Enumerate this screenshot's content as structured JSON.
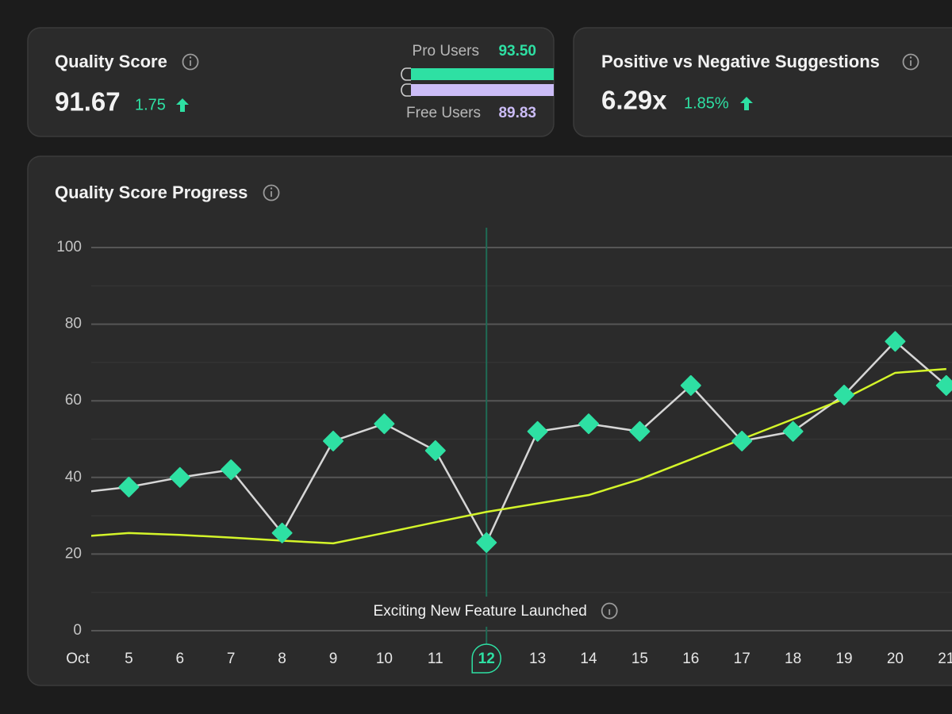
{
  "cards": [
    {
      "title": "Quality Score",
      "value": "91.67",
      "change": "1.75",
      "breakdown": [
        {
          "label": "Pro Users",
          "value": 93.5,
          "value_label": "93.50",
          "color": "#2ee0a3"
        },
        {
          "label": "Free Users",
          "value": 89.83,
          "value_label": "89.83",
          "color": "#cbbcf6"
        }
      ]
    },
    {
      "title": "Positive vs Negative Suggestions",
      "value": "6.29x",
      "change": "1.85%"
    }
  ],
  "chart_data": {
    "type": "line",
    "title": "Quality Score Progress",
    "categories": [
      "Oct",
      "5",
      "6",
      "7",
      "8",
      "9",
      "10",
      "11",
      "12",
      "13",
      "14",
      "15",
      "16",
      "17",
      "18",
      "19",
      "20",
      "21"
    ],
    "series": [
      {
        "color": "#d6d6d6",
        "marker": "diamond",
        "marker_color": "#2ee0a3",
        "values": [
          36,
          37.5,
          40,
          42,
          25.5,
          49.5,
          54,
          47,
          23,
          52,
          54,
          52,
          64,
          49.5,
          52,
          61.5,
          75.5,
          64
        ]
      },
      {
        "color": "#d4f52a",
        "values": [
          24.5,
          25.5,
          25,
          24.3,
          23.5,
          22.8,
          25.5,
          28.3,
          31,
          33.2,
          35.4,
          39.5,
          44.7,
          50,
          55.2,
          60.5,
          67.3,
          68.3
        ]
      }
    ],
    "ylim": [
      0,
      100
    ],
    "yticks": [
      0,
      20,
      40,
      60,
      80,
      100
    ],
    "minor_yticks": [
      10,
      30,
      50,
      70,
      90
    ],
    "grid": true,
    "annotation": {
      "text": "Exciting New Feature Launched",
      "x": "12",
      "color": "#2ee0a3"
    }
  }
}
